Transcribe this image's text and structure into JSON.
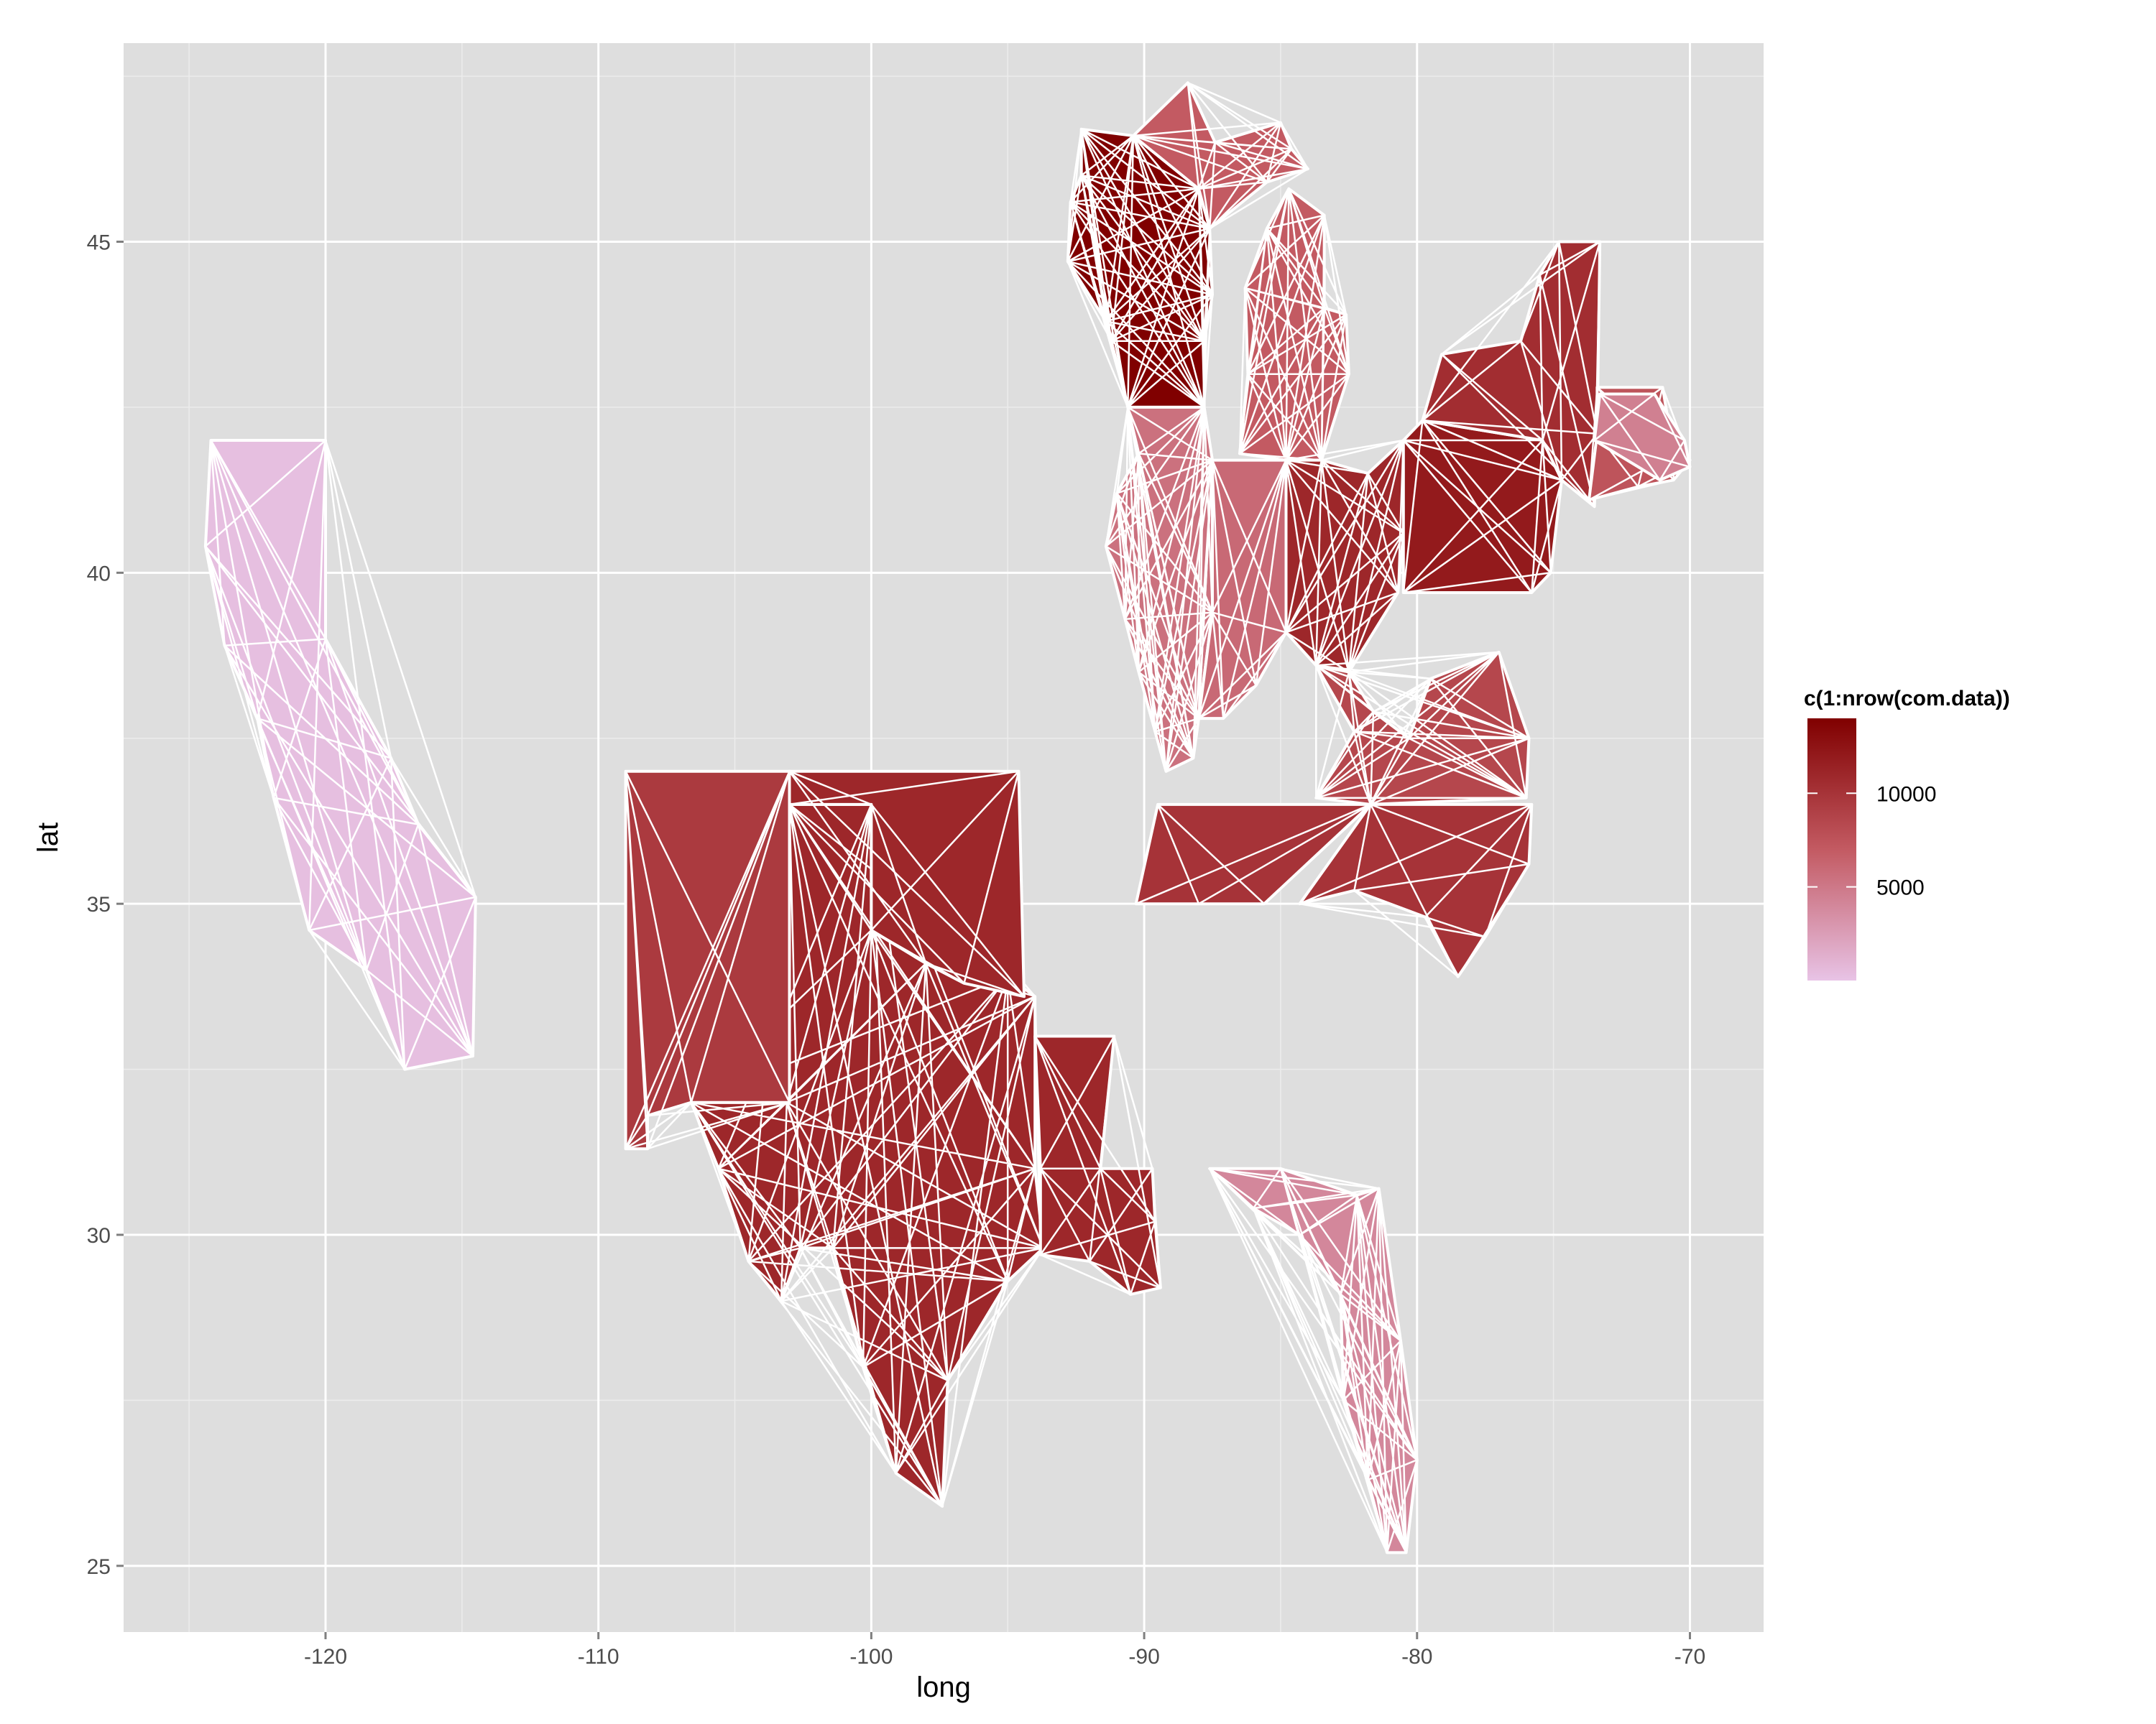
{
  "chart_data": {
    "type": "map",
    "xlabel": "long",
    "ylabel": "lat",
    "xlim": [
      -127.4,
      -67.3
    ],
    "ylim": [
      24.0,
      48.0
    ],
    "x_ticks": [
      -120,
      -110,
      -100,
      -90,
      -80,
      -70
    ],
    "x_tick_labels": [
      "-120",
      "-110",
      "-100",
      "-90",
      "-80",
      "-70"
    ],
    "y_ticks": [
      25,
      30,
      35,
      40,
      45
    ],
    "y_tick_labels": [
      "25",
      "30",
      "35",
      "40",
      "45"
    ],
    "grid": true,
    "panel_background": "#dedede",
    "grid_color": "#ffffff",
    "border_color": "#ffffff",
    "legend": {
      "title": "c(1:nrow(com.data))",
      "placement": "right",
      "range": [
        1,
        14000
      ],
      "breaks": [
        5000,
        10000
      ],
      "break_labels": [
        "5000",
        "10000"
      ],
      "low_color": "#e8c3e6",
      "high_color": "#800000"
    },
    "regions": [
      {
        "name": "california",
        "value": 300,
        "polygon": [
          [
            -124.2,
            42.0
          ],
          [
            -120.0,
            42.0
          ],
          [
            -120.0,
            39.0
          ],
          [
            -117.6,
            37.2
          ],
          [
            -116.6,
            36.2
          ],
          [
            -114.5,
            35.1
          ],
          [
            -114.6,
            32.7
          ],
          [
            -117.1,
            32.5
          ],
          [
            -118.5,
            34.0
          ],
          [
            -120.6,
            34.6
          ],
          [
            -121.9,
            36.6
          ],
          [
            -122.5,
            37.8
          ],
          [
            -123.7,
            38.9
          ],
          [
            -124.4,
            40.4
          ]
        ]
      },
      {
        "name": "texas",
        "value": 11000,
        "polygon": [
          [
            -106.6,
            32.0
          ],
          [
            -103.1,
            32.0
          ],
          [
            -103.0,
            36.5
          ],
          [
            -100.0,
            36.5
          ],
          [
            -100.0,
            34.6
          ],
          [
            -98.0,
            34.1
          ],
          [
            -95.0,
            33.9
          ],
          [
            -94.0,
            33.6
          ],
          [
            -94.0,
            31.0
          ],
          [
            -93.7,
            29.8
          ],
          [
            -95.0,
            29.3
          ],
          [
            -97.2,
            27.8
          ],
          [
            -97.4,
            25.9
          ],
          [
            -99.1,
            26.4
          ],
          [
            -100.3,
            28.0
          ],
          [
            -101.4,
            29.8
          ],
          [
            -102.6,
            29.8
          ],
          [
            -103.3,
            29.0
          ],
          [
            -104.5,
            29.6
          ],
          [
            -105.6,
            31.0
          ]
        ]
      },
      {
        "name": "new-mexico",
        "value": 9500,
        "polygon": [
          [
            -109.0,
            37.0
          ],
          [
            -103.0,
            37.0
          ],
          [
            -103.0,
            32.0
          ],
          [
            -106.6,
            32.0
          ],
          [
            -108.2,
            31.8
          ],
          [
            -108.2,
            31.3
          ],
          [
            -109.0,
            31.3
          ]
        ]
      },
      {
        "name": "oklahoma",
        "value": 11000,
        "polygon": [
          [
            -103.0,
            37.0
          ],
          [
            -94.6,
            37.0
          ],
          [
            -94.4,
            33.6
          ],
          [
            -96.6,
            33.8
          ],
          [
            -98.0,
            34.1
          ],
          [
            -100.0,
            34.6
          ],
          [
            -100.0,
            36.5
          ],
          [
            -103.0,
            36.5
          ]
        ]
      },
      {
        "name": "louisiana",
        "value": 11000,
        "polygon": [
          [
            -94.0,
            33.0
          ],
          [
            -91.1,
            33.0
          ],
          [
            -91.6,
            31.0
          ],
          [
            -89.7,
            31.0
          ],
          [
            -89.6,
            30.2
          ],
          [
            -89.4,
            29.2
          ],
          [
            -90.5,
            29.1
          ],
          [
            -92.0,
            29.6
          ],
          [
            -93.8,
            29.7
          ],
          [
            -93.8,
            31.0
          ]
        ]
      },
      {
        "name": "wisconsin",
        "value": 14000,
        "polygon": [
          [
            -92.3,
            46.7
          ],
          [
            -90.4,
            46.6
          ],
          [
            -88.0,
            45.8
          ],
          [
            -87.6,
            45.2
          ],
          [
            -87.5,
            44.2
          ],
          [
            -87.8,
            43.5
          ],
          [
            -87.8,
            42.5
          ],
          [
            -90.6,
            42.5
          ],
          [
            -91.2,
            43.5
          ],
          [
            -91.4,
            43.8
          ],
          [
            -92.8,
            44.7
          ],
          [
            -92.7,
            45.6
          ],
          [
            -92.3,
            46.0
          ]
        ]
      },
      {
        "name": "michigan-upper",
        "value": 7000,
        "polygon": [
          [
            -90.4,
            46.6
          ],
          [
            -88.4,
            47.4
          ],
          [
            -87.4,
            46.5
          ],
          [
            -85.0,
            46.8
          ],
          [
            -84.6,
            46.4
          ],
          [
            -84.0,
            46.1
          ],
          [
            -85.5,
            45.9
          ],
          [
            -87.6,
            45.2
          ],
          [
            -88.0,
            45.8
          ]
        ]
      },
      {
        "name": "michigan-lower",
        "value": 7000,
        "polygon": [
          [
            -86.5,
            41.8
          ],
          [
            -84.8,
            41.7
          ],
          [
            -83.5,
            41.7
          ],
          [
            -82.5,
            43.0
          ],
          [
            -82.6,
            43.9
          ],
          [
            -83.4,
            44.0
          ],
          [
            -83.4,
            45.4
          ],
          [
            -84.7,
            45.8
          ],
          [
            -85.5,
            45.2
          ],
          [
            -86.3,
            44.3
          ],
          [
            -86.2,
            43.0
          ]
        ]
      },
      {
        "name": "illinois",
        "value": 5500,
        "polygon": [
          [
            -90.6,
            42.5
          ],
          [
            -87.8,
            42.5
          ],
          [
            -87.5,
            41.7
          ],
          [
            -87.5,
            39.4
          ],
          [
            -88.0,
            37.8
          ],
          [
            -88.2,
            37.2
          ],
          [
            -89.2,
            37.0
          ],
          [
            -89.6,
            37.6
          ],
          [
            -90.2,
            38.5
          ],
          [
            -90.7,
            39.3
          ],
          [
            -91.4,
            40.4
          ],
          [
            -91.0,
            41.2
          ],
          [
            -90.2,
            41.8
          ]
        ]
      },
      {
        "name": "indiana",
        "value": 6000,
        "polygon": [
          [
            -87.5,
            41.7
          ],
          [
            -84.8,
            41.7
          ],
          [
            -84.8,
            39.1
          ],
          [
            -85.9,
            38.3
          ],
          [
            -87.1,
            37.8
          ],
          [
            -88.0,
            37.8
          ],
          [
            -87.5,
            39.4
          ]
        ]
      },
      {
        "name": "ohio",
        "value": 11000,
        "polygon": [
          [
            -84.8,
            41.7
          ],
          [
            -83.5,
            41.7
          ],
          [
            -81.8,
            41.5
          ],
          [
            -80.5,
            42.0
          ],
          [
            -80.5,
            40.6
          ],
          [
            -80.7,
            39.7
          ],
          [
            -82.5,
            38.5
          ],
          [
            -83.7,
            38.6
          ],
          [
            -84.8,
            39.1
          ]
        ]
      },
      {
        "name": "pennsylvania",
        "value": 12000,
        "polygon": [
          [
            -80.5,
            42.0
          ],
          [
            -79.8,
            42.3
          ],
          [
            -75.4,
            42.0
          ],
          [
            -74.7,
            41.4
          ],
          [
            -75.1,
            40.0
          ],
          [
            -75.8,
            39.7
          ],
          [
            -80.5,
            39.7
          ]
        ]
      },
      {
        "name": "new-york",
        "value": 10500,
        "polygon": [
          [
            -79.8,
            42.3
          ],
          [
            -79.1,
            43.3
          ],
          [
            -76.2,
            43.5
          ],
          [
            -75.5,
            44.5
          ],
          [
            -74.8,
            45.0
          ],
          [
            -73.3,
            45.0
          ],
          [
            -73.4,
            42.1
          ],
          [
            -73.5,
            41.0
          ],
          [
            -74.7,
            41.4
          ],
          [
            -75.4,
            42.0
          ]
        ]
      },
      {
        "name": "new-england",
        "value": 7500,
        "polygon": [
          [
            -73.4,
            42.8
          ],
          [
            -71.0,
            42.8
          ],
          [
            -70.6,
            41.8
          ],
          [
            -70.0,
            41.7
          ],
          [
            -70.6,
            41.4
          ],
          [
            -71.9,
            41.3
          ],
          [
            -73.7,
            41.1
          ],
          [
            -73.4,
            42.1
          ]
        ]
      },
      {
        "name": "massachusetts",
        "value": 4500,
        "polygon": [
          [
            -73.3,
            42.7
          ],
          [
            -71.3,
            42.7
          ],
          [
            -70.2,
            42.0
          ],
          [
            -70.0,
            41.6
          ],
          [
            -71.1,
            41.4
          ],
          [
            -73.5,
            42.0
          ]
        ]
      },
      {
        "name": "tennessee",
        "value": 10000,
        "polygon": [
          [
            -90.3,
            35.0
          ],
          [
            -88.0,
            35.0
          ],
          [
            -85.6,
            35.0
          ],
          [
            -81.7,
            36.5
          ],
          [
            -89.5,
            36.5
          ]
        ]
      },
      {
        "name": "north-carolina",
        "value": 10000,
        "polygon": [
          [
            -84.3,
            35.0
          ],
          [
            -82.3,
            35.2
          ],
          [
            -79.7,
            34.8
          ],
          [
            -78.5,
            33.9
          ],
          [
            -77.5,
            34.5
          ],
          [
            -75.9,
            35.6
          ],
          [
            -75.8,
            36.5
          ],
          [
            -81.7,
            36.5
          ]
        ]
      },
      {
        "name": "kentucky-virginia",
        "value": 8500,
        "polygon": [
          [
            -83.7,
            38.6
          ],
          [
            -82.5,
            38.5
          ],
          [
            -81.6,
            37.9
          ],
          [
            -80.3,
            37.5
          ],
          [
            -79.5,
            38.4
          ],
          [
            -77.0,
            38.8
          ],
          [
            -75.9,
            37.5
          ],
          [
            -76.0,
            36.6
          ],
          [
            -81.7,
            36.5
          ],
          [
            -83.7,
            36.6
          ],
          [
            -82.3,
            37.6
          ]
        ]
      },
      {
        "name": "florida",
        "value": 4000,
        "polygon": [
          [
            -87.6,
            31.0
          ],
          [
            -85.0,
            31.0
          ],
          [
            -82.2,
            30.6
          ],
          [
            -81.4,
            30.7
          ],
          [
            -80.6,
            28.4
          ],
          [
            -80.0,
            26.6
          ],
          [
            -80.4,
            25.2
          ],
          [
            -81.1,
            25.2
          ],
          [
            -81.8,
            26.3
          ],
          [
            -82.7,
            27.5
          ],
          [
            -82.8,
            29.1
          ],
          [
            -84.3,
            30.0
          ],
          [
            -86.0,
            30.4
          ]
        ]
      }
    ]
  }
}
